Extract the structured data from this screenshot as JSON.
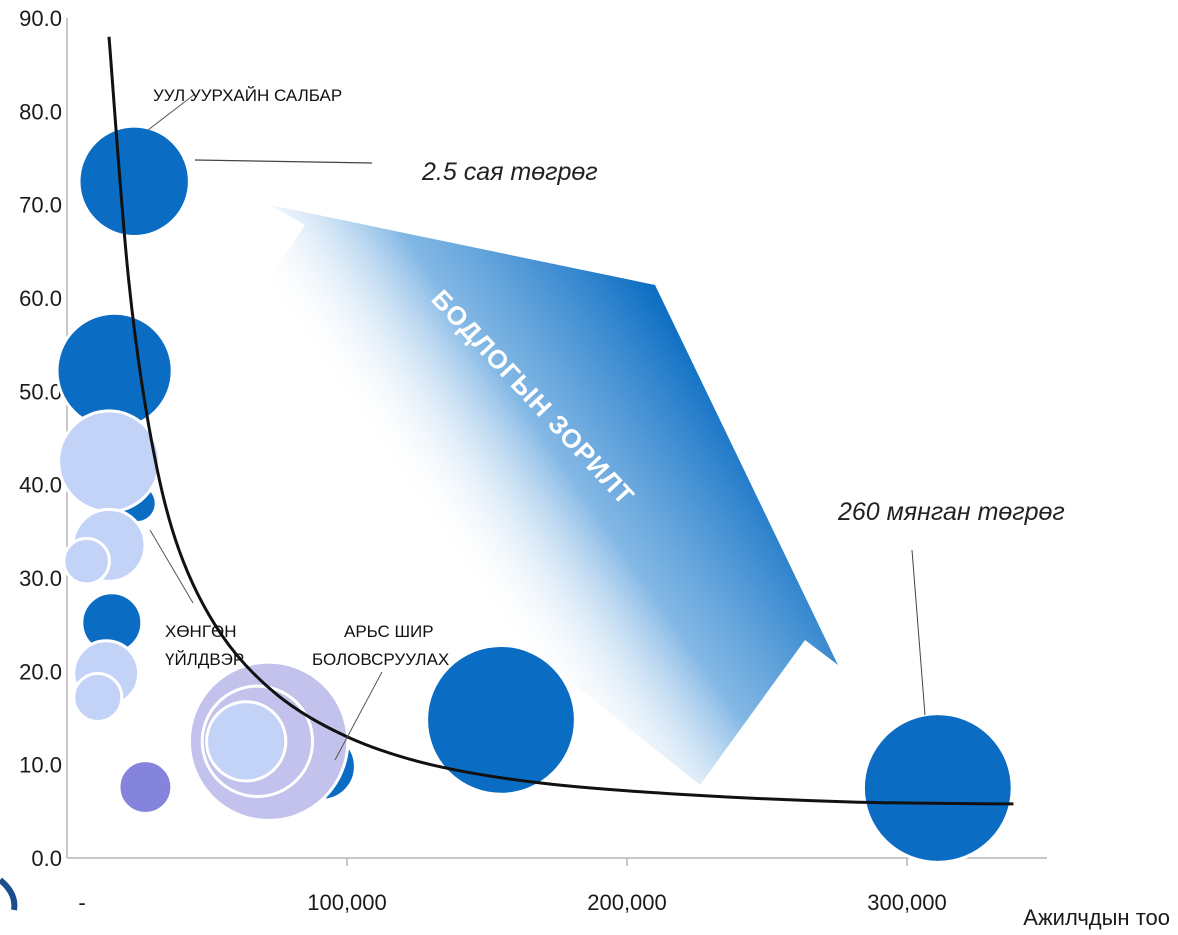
{
  "chart_data": {
    "type": "scatter",
    "xlabel": "Ажилчдын тоо",
    "ylabel": "",
    "xlim": [
      0,
      350000
    ],
    "ylim": [
      0,
      90
    ],
    "x_ticks": [
      {
        "value": 0,
        "label": "-"
      },
      {
        "value": 100000,
        "label": "100,000"
      },
      {
        "value": 200000,
        "label": "200,000"
      },
      {
        "value": 300000,
        "label": "300,000"
      }
    ],
    "y_ticks": [
      {
        "value": 0,
        "label": "0.0"
      },
      {
        "value": 10,
        "label": "10.0"
      },
      {
        "value": 20,
        "label": "20.0"
      },
      {
        "value": 30,
        "label": "30.0"
      },
      {
        "value": 40,
        "label": "40.0"
      },
      {
        "value": 50,
        "label": "50.0"
      },
      {
        "value": 60,
        "label": "60.0"
      },
      {
        "value": 70,
        "label": "70.0"
      },
      {
        "value": 80,
        "label": "80.0"
      },
      {
        "value": 90,
        "label": "90.0"
      }
    ],
    "colors": {
      "dark_blue": "#0a6cc2",
      "light_blue": "#c3d3f8",
      "lavender": "#c2c2ec",
      "purple": "#8484dc",
      "axis": "#b5b5b5",
      "curve": "#111111"
    },
    "bubbles": [
      {
        "x": 24000,
        "y": 72.5,
        "size": 46,
        "color": "dark_blue"
      },
      {
        "x": 17000,
        "y": 52.2,
        "size": 48,
        "color": "dark_blue"
      },
      {
        "x": 25000,
        "y": 38.0,
        "size": 16,
        "color": "dark_blue"
      },
      {
        "x": 15000,
        "y": 42.5,
        "size": 42,
        "color": "light_blue"
      },
      {
        "x": 15000,
        "y": 33.5,
        "size": 30,
        "color": "light_blue"
      },
      {
        "x": 7000,
        "y": 31.8,
        "size": 19,
        "color": "light_blue"
      },
      {
        "x": 16000,
        "y": 25.2,
        "size": 25,
        "color": "dark_blue"
      },
      {
        "x": 14000,
        "y": 19.8,
        "size": 27,
        "color": "light_blue"
      },
      {
        "x": 11000,
        "y": 17.2,
        "size": 20,
        "color": "light_blue"
      },
      {
        "x": 28000,
        "y": 7.6,
        "size": 22,
        "color": "purple"
      },
      {
        "x": 91000,
        "y": 9.8,
        "size": 28,
        "color": "dark_blue"
      },
      {
        "x": 72000,
        "y": 12.5,
        "size": 66,
        "color": "lavender"
      },
      {
        "x": 68000,
        "y": 12.5,
        "size": 46,
        "color": "lavender"
      },
      {
        "x": 64000,
        "y": 12.5,
        "size": 33,
        "color": "light_blue"
      },
      {
        "x": 155000,
        "y": 14.8,
        "size": 62,
        "color": "dark_blue"
      },
      {
        "x": 311000,
        "y": 7.5,
        "size": 62,
        "color": "dark_blue"
      }
    ],
    "curve": [
      [
        15000,
        88
      ],
      [
        22000,
        62
      ],
      [
        30000,
        45
      ],
      [
        40000,
        33
      ],
      [
        55000,
        24
      ],
      [
        75000,
        17.5
      ],
      [
        100000,
        13
      ],
      [
        130000,
        10
      ],
      [
        170000,
        8
      ],
      [
        220000,
        6.8
      ],
      [
        280000,
        6.0
      ],
      [
        338000,
        5.8
      ]
    ],
    "annotations": [
      {
        "text": "УУЛ УУРХАЙН САЛБАР"
      },
      {
        "text": "2.5 сая төгрөг"
      },
      {
        "text": "ХӨНГӨН"
      },
      {
        "text": "ҮЙЛДВЭР"
      },
      {
        "text": "АРЬС ШИР"
      },
      {
        "text": "БОЛОВСРУУЛАХ"
      },
      {
        "text": "260 мянган төгрөг"
      }
    ],
    "arrow_label": "БОДЛОГЫН ЗОРИЛТ"
  }
}
